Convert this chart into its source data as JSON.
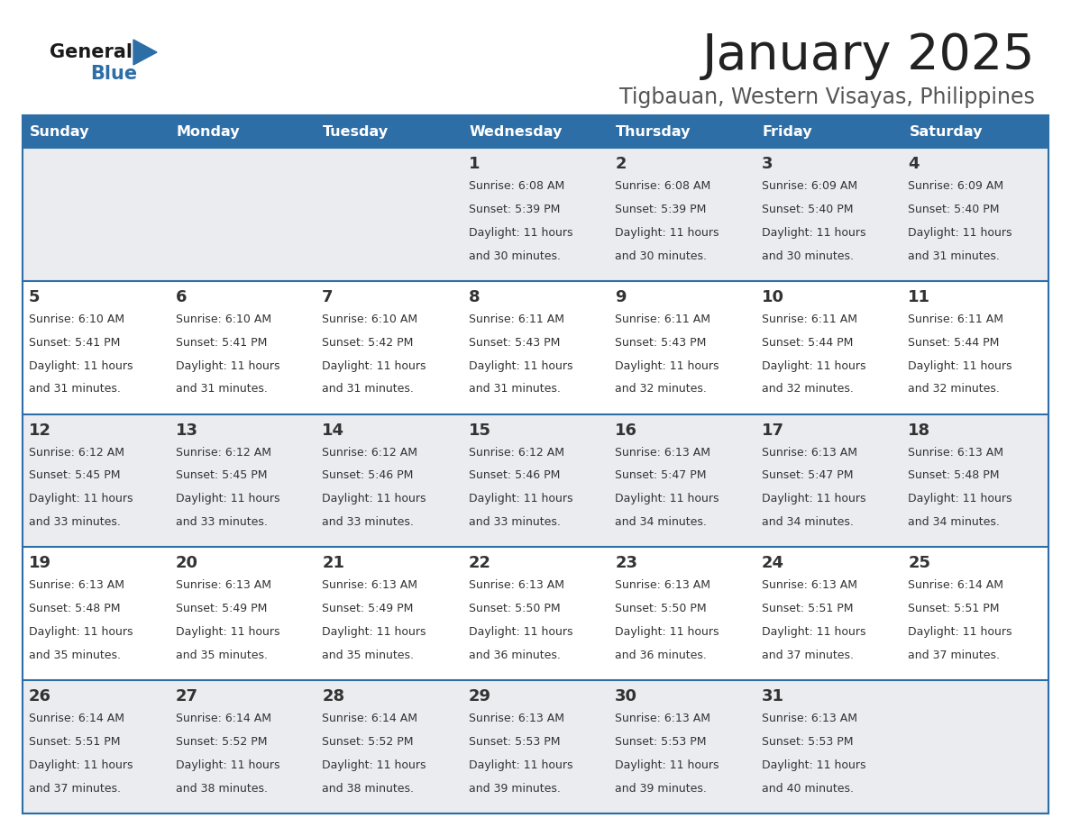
{
  "title": "January 2025",
  "subtitle": "Tigbauan, Western Visayas, Philippines",
  "days_of_week": [
    "Sunday",
    "Monday",
    "Tuesday",
    "Wednesday",
    "Thursday",
    "Friday",
    "Saturday"
  ],
  "header_bg": "#2E6EA6",
  "header_text": "#FFFFFF",
  "row_bg_odd": "#EAECF0",
  "row_bg_even": "#FFFFFF",
  "separator_color": "#2E6EA6",
  "day_number_color": "#333333",
  "cell_text_color": "#333333",
  "title_color": "#222222",
  "subtitle_color": "#555555",
  "calendar_data": [
    [
      {
        "day": null,
        "sunrise": null,
        "sunset": null,
        "daylight": null
      },
      {
        "day": null,
        "sunrise": null,
        "sunset": null,
        "daylight": null
      },
      {
        "day": null,
        "sunrise": null,
        "sunset": null,
        "daylight": null
      },
      {
        "day": 1,
        "sunrise": "6:08 AM",
        "sunset": "5:39 PM",
        "daylight": "11 hours\nand 30 minutes."
      },
      {
        "day": 2,
        "sunrise": "6:08 AM",
        "sunset": "5:39 PM",
        "daylight": "11 hours\nand 30 minutes."
      },
      {
        "day": 3,
        "sunrise": "6:09 AM",
        "sunset": "5:40 PM",
        "daylight": "11 hours\nand 30 minutes."
      },
      {
        "day": 4,
        "sunrise": "6:09 AM",
        "sunset": "5:40 PM",
        "daylight": "11 hours\nand 31 minutes."
      }
    ],
    [
      {
        "day": 5,
        "sunrise": "6:10 AM",
        "sunset": "5:41 PM",
        "daylight": "11 hours\nand 31 minutes."
      },
      {
        "day": 6,
        "sunrise": "6:10 AM",
        "sunset": "5:41 PM",
        "daylight": "11 hours\nand 31 minutes."
      },
      {
        "day": 7,
        "sunrise": "6:10 AM",
        "sunset": "5:42 PM",
        "daylight": "11 hours\nand 31 minutes."
      },
      {
        "day": 8,
        "sunrise": "6:11 AM",
        "sunset": "5:43 PM",
        "daylight": "11 hours\nand 31 minutes."
      },
      {
        "day": 9,
        "sunrise": "6:11 AM",
        "sunset": "5:43 PM",
        "daylight": "11 hours\nand 32 minutes."
      },
      {
        "day": 10,
        "sunrise": "6:11 AM",
        "sunset": "5:44 PM",
        "daylight": "11 hours\nand 32 minutes."
      },
      {
        "day": 11,
        "sunrise": "6:11 AM",
        "sunset": "5:44 PM",
        "daylight": "11 hours\nand 32 minutes."
      }
    ],
    [
      {
        "day": 12,
        "sunrise": "6:12 AM",
        "sunset": "5:45 PM",
        "daylight": "11 hours\nand 33 minutes."
      },
      {
        "day": 13,
        "sunrise": "6:12 AM",
        "sunset": "5:45 PM",
        "daylight": "11 hours\nand 33 minutes."
      },
      {
        "day": 14,
        "sunrise": "6:12 AM",
        "sunset": "5:46 PM",
        "daylight": "11 hours\nand 33 minutes."
      },
      {
        "day": 15,
        "sunrise": "6:12 AM",
        "sunset": "5:46 PM",
        "daylight": "11 hours\nand 33 minutes."
      },
      {
        "day": 16,
        "sunrise": "6:13 AM",
        "sunset": "5:47 PM",
        "daylight": "11 hours\nand 34 minutes."
      },
      {
        "day": 17,
        "sunrise": "6:13 AM",
        "sunset": "5:47 PM",
        "daylight": "11 hours\nand 34 minutes."
      },
      {
        "day": 18,
        "sunrise": "6:13 AM",
        "sunset": "5:48 PM",
        "daylight": "11 hours\nand 34 minutes."
      }
    ],
    [
      {
        "day": 19,
        "sunrise": "6:13 AM",
        "sunset": "5:48 PM",
        "daylight": "11 hours\nand 35 minutes."
      },
      {
        "day": 20,
        "sunrise": "6:13 AM",
        "sunset": "5:49 PM",
        "daylight": "11 hours\nand 35 minutes."
      },
      {
        "day": 21,
        "sunrise": "6:13 AM",
        "sunset": "5:49 PM",
        "daylight": "11 hours\nand 35 minutes."
      },
      {
        "day": 22,
        "sunrise": "6:13 AM",
        "sunset": "5:50 PM",
        "daylight": "11 hours\nand 36 minutes."
      },
      {
        "day": 23,
        "sunrise": "6:13 AM",
        "sunset": "5:50 PM",
        "daylight": "11 hours\nand 36 minutes."
      },
      {
        "day": 24,
        "sunrise": "6:13 AM",
        "sunset": "5:51 PM",
        "daylight": "11 hours\nand 37 minutes."
      },
      {
        "day": 25,
        "sunrise": "6:14 AM",
        "sunset": "5:51 PM",
        "daylight": "11 hours\nand 37 minutes."
      }
    ],
    [
      {
        "day": 26,
        "sunrise": "6:14 AM",
        "sunset": "5:51 PM",
        "daylight": "11 hours\nand 37 minutes."
      },
      {
        "day": 27,
        "sunrise": "6:14 AM",
        "sunset": "5:52 PM",
        "daylight": "11 hours\nand 38 minutes."
      },
      {
        "day": 28,
        "sunrise": "6:14 AM",
        "sunset": "5:52 PM",
        "daylight": "11 hours\nand 38 minutes."
      },
      {
        "day": 29,
        "sunrise": "6:13 AM",
        "sunset": "5:53 PM",
        "daylight": "11 hours\nand 39 minutes."
      },
      {
        "day": 30,
        "sunrise": "6:13 AM",
        "sunset": "5:53 PM",
        "daylight": "11 hours\nand 39 minutes."
      },
      {
        "day": 31,
        "sunrise": "6:13 AM",
        "sunset": "5:53 PM",
        "daylight": "11 hours\nand 40 minutes."
      },
      {
        "day": null,
        "sunrise": null,
        "sunset": null,
        "daylight": null
      }
    ]
  ]
}
